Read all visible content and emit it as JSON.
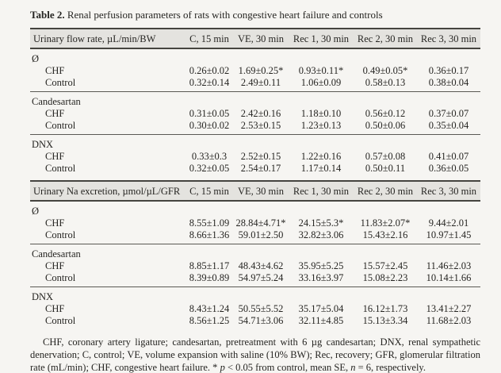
{
  "caption": {
    "number": "Table 2.",
    "text": " Renal perfusion parameters of rats with congestive heart failure and controls"
  },
  "colors": {
    "page_background": "#f6f5f2",
    "header_band": "#e4e3df",
    "rule": "#45443f",
    "text": "#262522"
  },
  "tables": [
    {
      "name": "urinary-flow-rate",
      "parameter": "Urinary flow rate, µL/min/BW",
      "columns": [
        "C, 15 min",
        "VE, 30 min",
        "Rec 1, 30 min",
        "Rec 2, 30 min",
        "Rec 3, 30 min"
      ],
      "sections": [
        {
          "label": "Ø",
          "rows": [
            {
              "label": "CHF",
              "values": [
                "0.26±0.02",
                "1.69±0.25*",
                "0.93±0.11*",
                "0.49±0.05*",
                "0.36±0.17"
              ]
            },
            {
              "label": "Control",
              "values": [
                "0.32±0.14",
                "2.49±0.11",
                "1.06±0.09",
                "0.58±0.13",
                "0.38±0.04"
              ]
            }
          ]
        },
        {
          "label": "Candesartan",
          "rows": [
            {
              "label": "CHF",
              "values": [
                "0.31±0.05",
                "2.42±0.16",
                "1.18±0.10",
                "0.56±0.12",
                "0.37±0.07"
              ]
            },
            {
              "label": "Control",
              "values": [
                "0.30±0.02",
                "2.53±0.15",
                "1.23±0.13",
                "0.50±0.06",
                "0.35±0.04"
              ]
            }
          ]
        },
        {
          "label": "DNX",
          "rows": [
            {
              "label": "CHF",
              "values": [
                "0.33±0.3",
                "2.52±0.15",
                "1.22±0.16",
                "0.57±0.08",
                "0.41±0.07"
              ]
            },
            {
              "label": "Control",
              "values": [
                "0.32±0.05",
                "2.54±0.17",
                "1.17±0.14",
                "0.50±0.11",
                "0.36±0.05"
              ]
            }
          ]
        }
      ]
    },
    {
      "name": "urinary-na-excretion",
      "parameter": "Urinary Na excretion, µmol/µL/GFR",
      "columns": [
        "C, 15 min",
        "VE, 30 min",
        "Rec 1, 30 min",
        "Rec 2, 30 min",
        "Rec 3, 30 min"
      ],
      "sections": [
        {
          "label": "Ø",
          "rows": [
            {
              "label": "CHF",
              "values": [
                "8.55±1.09",
                "28.84±4.71*",
                "24.15±5.3*",
                "11.83±2.07*",
                "9.44±2.01"
              ]
            },
            {
              "label": "Control",
              "values": [
                "8.66±1.36",
                "59.01±2.50",
                "32.82±3.06",
                "15.43±2.16",
                "10.97±1.45"
              ]
            }
          ]
        },
        {
          "label": "Candesartan",
          "rows": [
            {
              "label": "CHF",
              "values": [
                "8.85±1.17",
                "48.43±4.62",
                "35.95±5.25",
                "15.57±2.45",
                "11.46±2.03"
              ]
            },
            {
              "label": "Control",
              "values": [
                "8.39±0.89",
                "54.97±5.24",
                "33.16±3.97",
                "15.08±2.23",
                "10.14±1.66"
              ]
            }
          ]
        },
        {
          "label": "DNX",
          "rows": [
            {
              "label": "CHF",
              "values": [
                "8.43±1.24",
                "50.55±5.52",
                "35.17±5.04",
                "16.12±1.73",
                "13.41±2.27"
              ]
            },
            {
              "label": "Control",
              "values": [
                "8.56±1.25",
                "54.71±3.06",
                "32.11±4.85",
                "15.13±3.34",
                "11.68±2.03"
              ]
            }
          ]
        }
      ]
    }
  ],
  "footnote": {
    "segments": [
      {
        "text": "CHF, coronary artery ligature; candesartan, pretreatment with 6 µg candesartan; DNX, renal sympathetic denervation; C, control; VE, volume expansion with saline (10% BW); Rec, recovery; GFR, glomerular filtration rate (mL/min); CHF, congestive heart failure. * ",
        "italic": false
      },
      {
        "text": "p",
        "italic": true
      },
      {
        "text": " < 0.05 from control, mean SE, ",
        "italic": false
      },
      {
        "text": "n",
        "italic": true
      },
      {
        "text": " = 6, respectively.",
        "italic": false
      }
    ]
  }
}
